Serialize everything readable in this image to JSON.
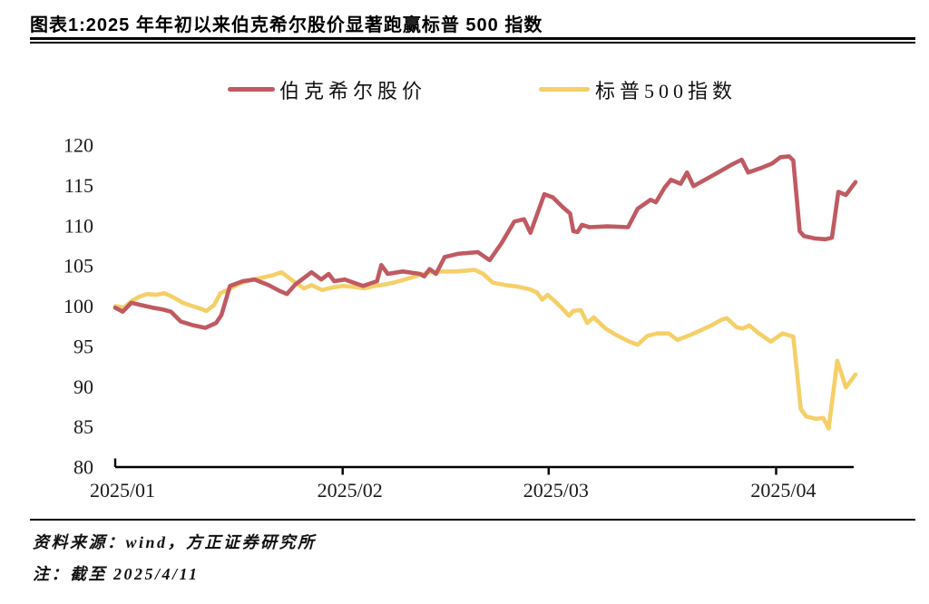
{
  "header": {
    "title": "图表1:2025 年年初以来伯克希尔股价显著跑赢标普 500 指数"
  },
  "footer": {
    "source_line": "资料来源：wind，方正证券研究所",
    "note_line": "注：截至 2025/4/11"
  },
  "chart_data": {
    "type": "line",
    "title": "2025 年年初以来伯克希尔股价显著跑赢标普 500 指数",
    "x_unit": "trading days since 2025/01/02 (index, start = 100)",
    "ylim": [
      80,
      120
    ],
    "yticks": [
      80,
      85,
      90,
      95,
      100,
      105,
      110,
      115,
      120
    ],
    "xlim": [
      0,
      69
    ],
    "xticks": [
      {
        "pos": 0,
        "label": "2025/01"
      },
      {
        "pos": 21.2,
        "label": "2025/02"
      },
      {
        "pos": 40.4,
        "label": "2025/03"
      },
      {
        "pos": 61.6,
        "label": "2025/04"
      }
    ],
    "grid": false,
    "legend_position": "top",
    "series": [
      {
        "name": "伯克希尔股价",
        "color": "#c05a62",
        "points": [
          [
            0,
            99.8
          ],
          [
            0.7,
            99.3
          ],
          [
            1.5,
            100.4
          ],
          [
            2.5,
            100.1
          ],
          [
            3.5,
            99.8
          ],
          [
            4.4,
            99.6
          ],
          [
            5.2,
            99.3
          ],
          [
            6.1,
            98.1
          ],
          [
            7.3,
            97.6
          ],
          [
            8.4,
            97.3
          ],
          [
            9.4,
            97.9
          ],
          [
            9.9,
            98.9
          ],
          [
            10.7,
            102.5
          ],
          [
            11.9,
            103.1
          ],
          [
            13,
            103.3
          ],
          [
            14.3,
            102.6
          ],
          [
            15.3,
            101.9
          ],
          [
            16,
            101.5
          ],
          [
            16.8,
            102.7
          ],
          [
            18.3,
            104.2
          ],
          [
            19.2,
            103.3
          ],
          [
            19.9,
            104.0
          ],
          [
            20.4,
            103.1
          ],
          [
            21.4,
            103.3
          ],
          [
            23.1,
            102.5
          ],
          [
            24.4,
            103.1
          ],
          [
            24.8,
            105.1
          ],
          [
            25.4,
            104.0
          ],
          [
            26.8,
            104.3
          ],
          [
            28.4,
            104.0
          ],
          [
            28.8,
            103.7
          ],
          [
            29.3,
            104.6
          ],
          [
            29.9,
            104.0
          ],
          [
            30.7,
            106.1
          ],
          [
            32,
            106.5
          ],
          [
            33.8,
            106.7
          ],
          [
            34.9,
            105.7
          ],
          [
            36,
            107.8
          ],
          [
            37.2,
            110.5
          ],
          [
            38.1,
            110.8
          ],
          [
            38.7,
            109.1
          ],
          [
            40,
            113.9
          ],
          [
            40.8,
            113.5
          ],
          [
            41.7,
            112.3
          ],
          [
            42.4,
            111.5
          ],
          [
            42.7,
            109.3
          ],
          [
            43.1,
            109.2
          ],
          [
            43.5,
            110.1
          ],
          [
            44.2,
            109.8
          ],
          [
            45.9,
            109.9
          ],
          [
            47.8,
            109.8
          ],
          [
            48.7,
            112.1
          ],
          [
            49.9,
            113.2
          ],
          [
            50.4,
            112.9
          ],
          [
            51.2,
            114.7
          ],
          [
            51.8,
            115.7
          ],
          [
            52.7,
            115.2
          ],
          [
            53.3,
            116.6
          ],
          [
            53.9,
            114.9
          ],
          [
            55.8,
            116.3
          ],
          [
            57.5,
            117.6
          ],
          [
            58.4,
            118.2
          ],
          [
            59,
            116.6
          ],
          [
            60.3,
            117.2
          ],
          [
            61.2,
            117.7
          ],
          [
            62,
            118.5
          ],
          [
            62.8,
            118.6
          ],
          [
            63.2,
            118.1
          ],
          [
            63.8,
            109.3
          ],
          [
            64.2,
            108.7
          ],
          [
            65.2,
            108.4
          ],
          [
            66.2,
            108.3
          ],
          [
            66.8,
            108.5
          ],
          [
            67.4,
            114.2
          ],
          [
            68.1,
            113.8
          ],
          [
            69,
            115.4
          ]
        ]
      },
      {
        "name": "标普500指数",
        "color": "#f5cf68",
        "points": [
          [
            0,
            100.0
          ],
          [
            0.8,
            99.8
          ],
          [
            1.6,
            100.7
          ],
          [
            2.3,
            101.2
          ],
          [
            3,
            101.5
          ],
          [
            3.8,
            101.4
          ],
          [
            4.6,
            101.6
          ],
          [
            5.4,
            101.1
          ],
          [
            6.3,
            100.4
          ],
          [
            7.2,
            100.0
          ],
          [
            7.9,
            99.7
          ],
          [
            8.5,
            99.4
          ],
          [
            9.2,
            100.1
          ],
          [
            9.8,
            101.6
          ],
          [
            10.6,
            102.1
          ],
          [
            11.6,
            102.8
          ],
          [
            12.8,
            103.3
          ],
          [
            13.6,
            103.5
          ],
          [
            14.6,
            103.8
          ],
          [
            15.5,
            104.2
          ],
          [
            16.5,
            103.2
          ],
          [
            17.6,
            102.2
          ],
          [
            18.3,
            102.6
          ],
          [
            19.3,
            102.0
          ],
          [
            20.2,
            102.3
          ],
          [
            21.2,
            102.5
          ],
          [
            22.2,
            102.4
          ],
          [
            23.2,
            102.2
          ],
          [
            24.2,
            102.5
          ],
          [
            25.2,
            102.7
          ],
          [
            25.9,
            102.9
          ],
          [
            27,
            103.3
          ],
          [
            28.2,
            103.8
          ],
          [
            29.3,
            104.2
          ],
          [
            30.5,
            104.3
          ],
          [
            31.7,
            104.3
          ],
          [
            32.7,
            104.4
          ],
          [
            33.5,
            104.5
          ],
          [
            34.3,
            104.0
          ],
          [
            35.2,
            102.9
          ],
          [
            36.4,
            102.6
          ],
          [
            37.6,
            102.4
          ],
          [
            38.6,
            102.1
          ],
          [
            39.3,
            101.7
          ],
          [
            39.8,
            100.8
          ],
          [
            40.3,
            101.4
          ],
          [
            40.9,
            100.7
          ],
          [
            41.6,
            99.8
          ],
          [
            42.3,
            98.8
          ],
          [
            42.7,
            99.4
          ],
          [
            43.4,
            99.5
          ],
          [
            44,
            97.9
          ],
          [
            44.6,
            98.6
          ],
          [
            45.7,
            97.2
          ],
          [
            46.7,
            96.4
          ],
          [
            47.9,
            95.6
          ],
          [
            48.7,
            95.2
          ],
          [
            49.6,
            96.3
          ],
          [
            50.5,
            96.6
          ],
          [
            51.6,
            96.6
          ],
          [
            52.4,
            95.8
          ],
          [
            53.6,
            96.4
          ],
          [
            54.6,
            97.0
          ],
          [
            55.7,
            97.7
          ],
          [
            56.5,
            98.3
          ],
          [
            57,
            98.5
          ],
          [
            57.9,
            97.4
          ],
          [
            58.5,
            97.2
          ],
          [
            59.1,
            97.6
          ],
          [
            59.9,
            96.7
          ],
          [
            61.1,
            95.6
          ],
          [
            62.2,
            96.6
          ],
          [
            63.2,
            96.2
          ],
          [
            63.9,
            87.2
          ],
          [
            64.4,
            86.3
          ],
          [
            65.3,
            86.0
          ],
          [
            66,
            86.1
          ],
          [
            66.5,
            84.8
          ],
          [
            67.3,
            93.2
          ],
          [
            68.1,
            89.9
          ],
          [
            69,
            91.5
          ]
        ]
      }
    ]
  }
}
